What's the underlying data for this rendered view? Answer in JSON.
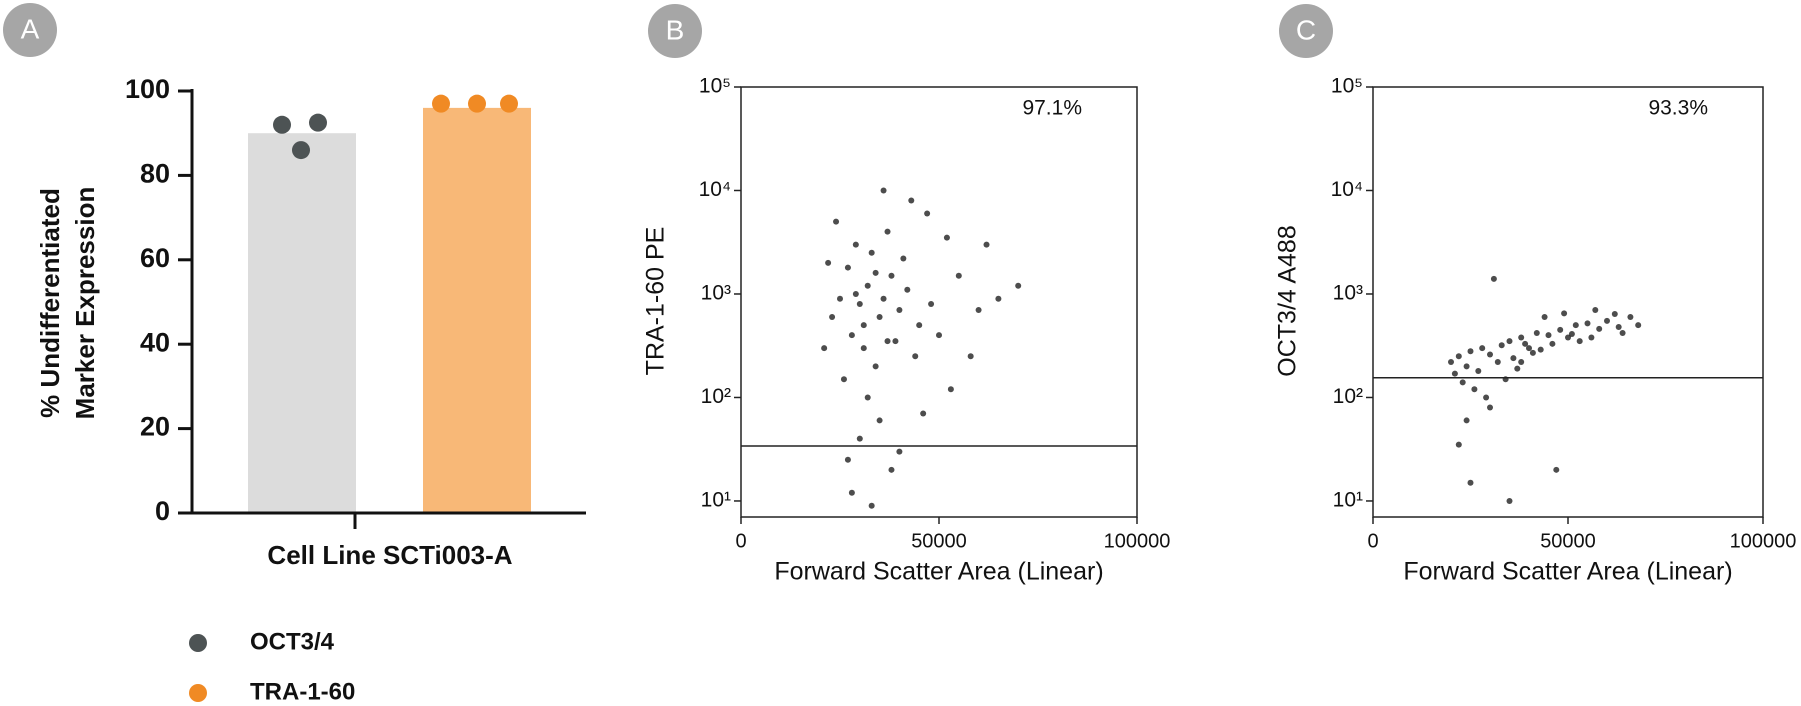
{
  "chart_data": [
    {
      "type": "bar",
      "panel": "A",
      "y_label": [
        "% Undifferentiated",
        "Marker Expression"
      ],
      "x_label": "Cell Line SCTi003-A",
      "ylim": [
        0,
        100
      ],
      "yticks": [
        0,
        20,
        40,
        60,
        80,
        100
      ],
      "series": [
        {
          "name": "OCT3/4",
          "color": "#4d5354",
          "bar_color": "#dcdcdc",
          "values": [
            90
          ],
          "points": [
            92,
            92.5,
            86
          ]
        },
        {
          "name": "TRA-1-60",
          "color": "#f08a24",
          "bar_color": "#f8b877",
          "values": [
            96
          ],
          "points": [
            97,
            97,
            97
          ]
        }
      ]
    },
    {
      "type": "scatter",
      "panel": "B",
      "y_label": "TRA-1-60 PE",
      "x_label": "Forward Scatter Area (Linear)",
      "annotation": "97.1%",
      "gate": 34,
      "log_y": true,
      "color": "#111111",
      "xlim": [
        0,
        100000
      ],
      "xticks": [
        0,
        50000,
        100000
      ],
      "ylim": [
        7,
        100000
      ],
      "yticks": [
        {
          "value": 10,
          "label": "10¹"
        },
        {
          "value": 100,
          "label": "10²"
        },
        {
          "value": 1000,
          "label": "10³"
        },
        {
          "value": 10000,
          "label": "10⁴"
        },
        {
          "value": 100000,
          "label": "10⁵"
        }
      ],
      "x": [
        30000,
        32000,
        35000,
        28000,
        38000,
        33000,
        36000,
        40000,
        27000,
        31000,
        42000,
        34000,
        29000,
        37000,
        45000,
        25000,
        39000,
        41000,
        26000,
        32000,
        48000,
        50000,
        44000,
        23000,
        35000,
        30000,
        38000,
        28000,
        33000,
        55000,
        60000,
        52000,
        47000,
        43000,
        36000,
        24000,
        22000,
        65000,
        58000,
        62000,
        21000,
        53000,
        46000,
        40000,
        27000,
        70000,
        34000,
        31000,
        37000,
        29000
      ],
      "values": [
        800,
        1200,
        600,
        400,
        1500,
        2500,
        900,
        700,
        1800,
        300,
        1100,
        200,
        3000,
        4000,
        500,
        900,
        350,
        2200,
        150,
        100,
        800,
        400,
        250,
        600,
        60,
        40,
        20,
        12,
        9,
        1500,
        700,
        3500,
        6000,
        8000,
        10000,
        5000,
        2000,
        900,
        250,
        3000,
        300,
        120,
        70,
        30,
        25,
        1200,
        1600,
        500,
        350,
        1000
      ]
    },
    {
      "type": "scatter",
      "panel": "C",
      "y_label": "OCT3/4 A488",
      "x_label": "Forward Scatter Area (Linear)",
      "annotation": "93.3%",
      "gate": 155,
      "log_y": true,
      "color": "#111111",
      "xlim": [
        0,
        100000
      ],
      "xticks": [
        0,
        50000,
        100000
      ],
      "ylim": [
        7,
        100000
      ],
      "yticks": [
        {
          "value": 10,
          "label": "10¹"
        },
        {
          "value": 100,
          "label": "10²"
        },
        {
          "value": 1000,
          "label": "10³"
        },
        {
          "value": 10000,
          "label": "10⁴"
        },
        {
          "value": 100000,
          "label": "10⁵"
        }
      ],
      "x": [
        22000,
        25000,
        28000,
        30000,
        33000,
        35000,
        38000,
        40000,
        42000,
        45000,
        48000,
        50000,
        52000,
        55000,
        58000,
        60000,
        63000,
        66000,
        68000,
        24000,
        27000,
        32000,
        36000,
        41000,
        46000,
        53000,
        21000,
        23000,
        26000,
        29000,
        24000,
        22000,
        30000,
        34000,
        37000,
        44000,
        49000,
        57000,
        62000,
        31000,
        47000,
        35000,
        25000,
        38000,
        43000,
        20000,
        39000,
        51000,
        56000,
        64000
      ],
      "values": [
        250,
        280,
        300,
        260,
        320,
        350,
        380,
        300,
        420,
        400,
        450,
        380,
        500,
        520,
        460,
        550,
        480,
        600,
        500,
        200,
        180,
        220,
        240,
        270,
        330,
        350,
        170,
        140,
        120,
        100,
        60,
        35,
        80,
        150,
        190,
        600,
        650,
        700,
        640,
        1400,
        20,
        10,
        15,
        220,
        290,
        220,
        330,
        410,
        380,
        420
      ]
    }
  ]
}
